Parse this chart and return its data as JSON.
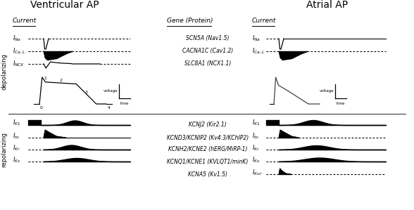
{
  "title_left": "Ventricular AP",
  "title_right": "Atrial AP",
  "col_header_gene": "Gene (Protein)",
  "col_header_current": "Current",
  "genes_depol": [
    "SCN5A (Nav1.5)",
    "CACNA1C (Cav1.2)",
    "SLC8A1 (NCX1.1)"
  ],
  "genes_repol": [
    "KCNJ2 (Kir2.1)",
    "KCND3/KCNIP2 (Kv4.3/KChIP2)",
    "KCNH2/KCNE2 (hERG/MiRP-1)",
    "KCNQ1/KCNE1 (KVLQT1/minK)",
    "KCNA5 (Kv1.5)"
  ],
  "bg_color": "#ffffff"
}
